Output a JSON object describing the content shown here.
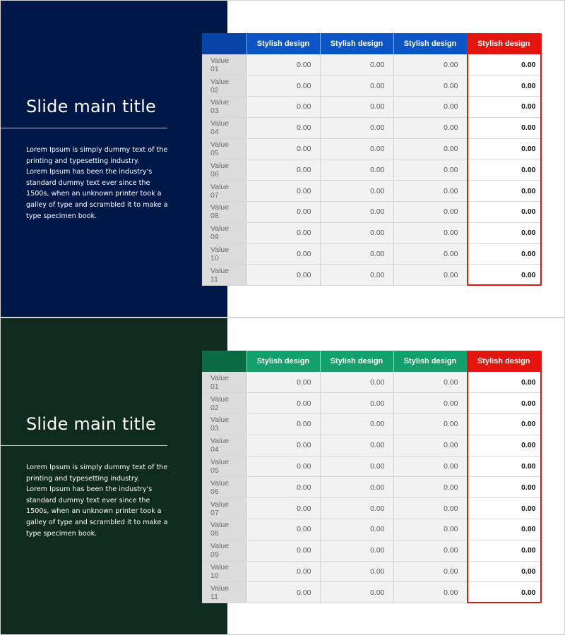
{
  "slides": [
    {
      "title": "Slide main title",
      "body": [
        "Lorem Ipsum is simply dummy text of the printing and typesetting industry.",
        "Lorem Ipsum has been the industry's standard dummy text ever since the 1500s, when an unknown printer took a galley of type and scrambled it to make a type specimen book."
      ],
      "colors": {
        "panel": "#001848",
        "header": "#0d55c7",
        "header_corner": "#0843a8",
        "highlight": "#e3160f"
      }
    },
    {
      "title": "Slide main title",
      "body": [
        "Lorem Ipsum is simply dummy text of the printing and typesetting industry.",
        "Lorem Ipsum has been the industry's standard dummy text ever since the 1500s, when an unknown printer took a galley of type and scrambled it to make a type specimen book."
      ],
      "colors": {
        "panel": "#0f2a1e",
        "header": "#13a06a",
        "header_corner": "#0a6b43",
        "highlight": "#e3160f"
      }
    }
  ],
  "table": {
    "headers": [
      "",
      "Stylish design",
      "Stylish design",
      "Stylish design",
      "Stylish design"
    ],
    "rows": [
      [
        "Value 01",
        "0.00",
        "0.00",
        "0.00",
        "0.00"
      ],
      [
        "Value 02",
        "0.00",
        "0.00",
        "0.00",
        "0.00"
      ],
      [
        "Value 03",
        "0.00",
        "0.00",
        "0.00",
        "0.00"
      ],
      [
        "Value 04",
        "0.00",
        "0.00",
        "0.00",
        "0.00"
      ],
      [
        "Value 05",
        "0.00",
        "0.00",
        "0.00",
        "0.00"
      ],
      [
        "Value 06",
        "0.00",
        "0.00",
        "0.00",
        "0.00"
      ],
      [
        "Value 07",
        "0.00",
        "0.00",
        "0.00",
        "0.00"
      ],
      [
        "Value 08",
        "0.00",
        "0.00",
        "0.00",
        "0.00"
      ],
      [
        "Value 09",
        "0.00",
        "0.00",
        "0.00",
        "0.00"
      ],
      [
        "Value 10",
        "0.00",
        "0.00",
        "0.00",
        "0.00"
      ],
      [
        "Value 11",
        "0.00",
        "0.00",
        "0.00",
        "0.00"
      ]
    ]
  }
}
